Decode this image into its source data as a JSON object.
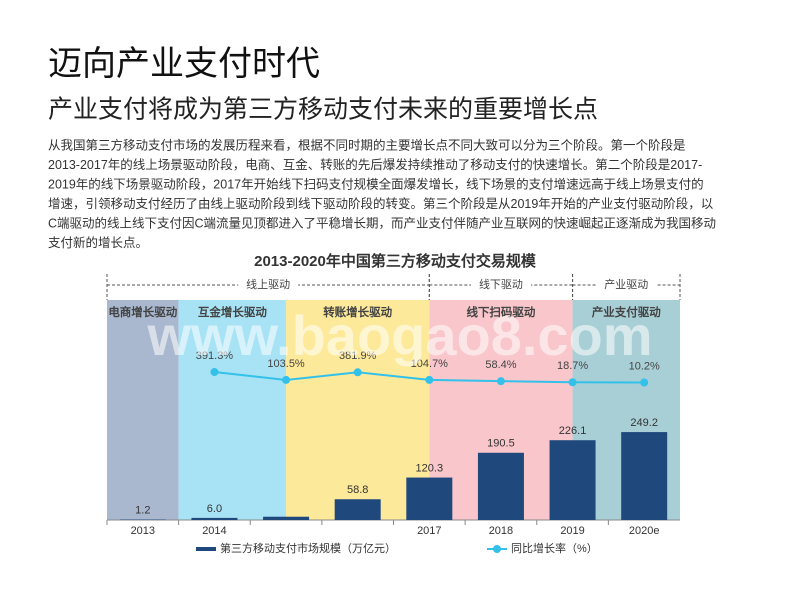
{
  "title": "迈向产业支付时代",
  "subtitle": "产业支付将成为第三方移动支付未来的重要增长点",
  "paragraph": [
    "从我国第三方移动支付市场的发展历程来看，根据不同时期的主要增长点不同大致可以分为三个阶段。第一个阶段是",
    "2013-2017年的线上场景驱动阶段，电商、互金、转账的先后爆发持续推动了移动支付的快速增长。第二个阶段是2017-",
    "2019年的线下场景驱动阶段，2017年开始线下扫码支付规模全面爆发增长，线下场景的支付增速远高于线上场景支付的",
    "增速，引领移动支付经历了由线上驱动阶段到线下驱动阶段的转变。第三个阶段是从2019年开始的产业支付驱动阶段，以",
    "C端驱动的线上线下支付因C端流量见顶都进入了平稳增长期，而产业支付伴随产业互联网的快速崛起正逐渐成为我国移动",
    "支付新的增长点。"
  ],
  "watermark": "www.baogao8.com",
  "chart_data": {
    "type": "bar_line",
    "title": "2013-2020年中国第三方移动支付交易规模",
    "categories": [
      "2013",
      "2014",
      null,
      null,
      "2017",
      "2018",
      "2019",
      "2020e"
    ],
    "drivers": [
      "线上驱动",
      "线下驱动",
      "产业驱动"
    ],
    "phases": [
      "电商增长驱动",
      "互金增长驱动",
      "转账增长驱动",
      "线下扫码驱动",
      "产业支付驱动"
    ],
    "phase_colors": [
      "#a9b8cf",
      "#a8e3f5",
      "#fde99a",
      "#f8c6cb",
      "#a9cfd6"
    ],
    "ylim": [
      0,
      700
    ],
    "y2lim": [
      -5000,
      4000
    ],
    "series": [
      {
        "name": "第三方移动支付市场规模（万亿元）",
        "color": "#1f497d",
        "values": [
          1.2,
          6.0,
          9.3,
          58.8,
          120.3,
          190.5,
          226.1,
          249.2
        ],
        "value_labels": [
          "1.2",
          "6.0",
          null,
          "58.8",
          "120.3",
          "190.5",
          "226.1",
          "249.2"
        ]
      },
      {
        "name": "同比增长率（%）",
        "color": "#33c1ea",
        "axis": "y2",
        "values": [
          null,
          391.3,
          103.5,
          381.9,
          104.7,
          58.4,
          18.7,
          10.2
        ],
        "value_labels": [
          null,
          "391.3%",
          "103.5%",
          "381.9%",
          "104.7%",
          "58.4%",
          "18.7%",
          "10.2%"
        ]
      }
    ]
  }
}
